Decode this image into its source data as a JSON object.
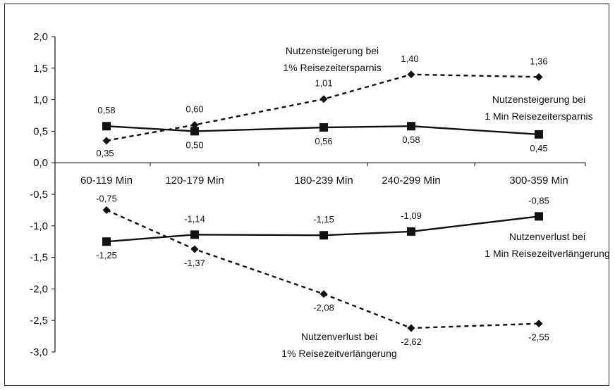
{
  "chart_data": {
    "type": "line",
    "title": "",
    "xlabel": "",
    "ylabel": "",
    "categories": [
      "60-119 Min",
      "120-179 Min",
      "180-239 Min",
      "240-299 Min",
      "300-359 Min"
    ],
    "ylim": [
      -3.0,
      2.0
    ],
    "yticks": [
      "2,0",
      "1,5",
      "1,0",
      "0,5",
      "0,0",
      "-0,5",
      "-1,0",
      "-1,5",
      "-2,0",
      "-2,5",
      "-3,0"
    ],
    "grid": false,
    "legend": "none",
    "series": [
      {
        "name": "Nutzensteigerung bei 1% Reisezeitersparnis",
        "style": "dashed",
        "marker": "diamond",
        "color": "#111111",
        "values": [
          0.35,
          0.6,
          1.01,
          1.4,
          1.36
        ],
        "labels": [
          "0,35",
          "0,60",
          "1,01",
          "1,40",
          "1,36"
        ]
      },
      {
        "name": "Nutzensteigerung bei 1 Min Reisezeitersparnis",
        "style": "solid",
        "marker": "square",
        "color": "#111111",
        "values": [
          0.58,
          0.5,
          0.56,
          0.58,
          0.45
        ],
        "labels": [
          "0,58",
          "0,50",
          "0,56",
          "0,58",
          "0,45"
        ]
      },
      {
        "name": "Nutzenverlust bei 1 Min Reisezeitverlängerung",
        "style": "solid",
        "marker": "square",
        "color": "#111111",
        "values": [
          -1.25,
          -1.14,
          -1.15,
          -1.09,
          -0.85
        ],
        "labels": [
          "-1,25",
          "-1,14",
          "-1,15",
          "-1,09",
          "-0,85"
        ]
      },
      {
        "name": "Nutzenverlust bei 1% Reisezeitverlängerung",
        "style": "dashed",
        "marker": "diamond",
        "color": "#111111",
        "values": [
          -0.75,
          -1.37,
          -2.08,
          -2.62,
          -2.55
        ],
        "labels": [
          "-0,75",
          "-1,37",
          "-2,08",
          "-2,62",
          "-2,55"
        ]
      }
    ],
    "annotations": [
      {
        "series": 0,
        "lines": [
          "Nutzensteigerung bei",
          "1% Reisezeitersparnis"
        ]
      },
      {
        "series": 1,
        "lines": [
          "Nutzensteigerung bei",
          "1 Min Reisezeitersparnis"
        ]
      },
      {
        "series": 2,
        "lines": [
          "Nutzenverlust bei",
          "1 Min Reisezeitverlängerung"
        ]
      },
      {
        "series": 3,
        "lines": [
          "Nutzenverlust bei",
          "1% Reisezeitverlängerung"
        ]
      }
    ]
  }
}
